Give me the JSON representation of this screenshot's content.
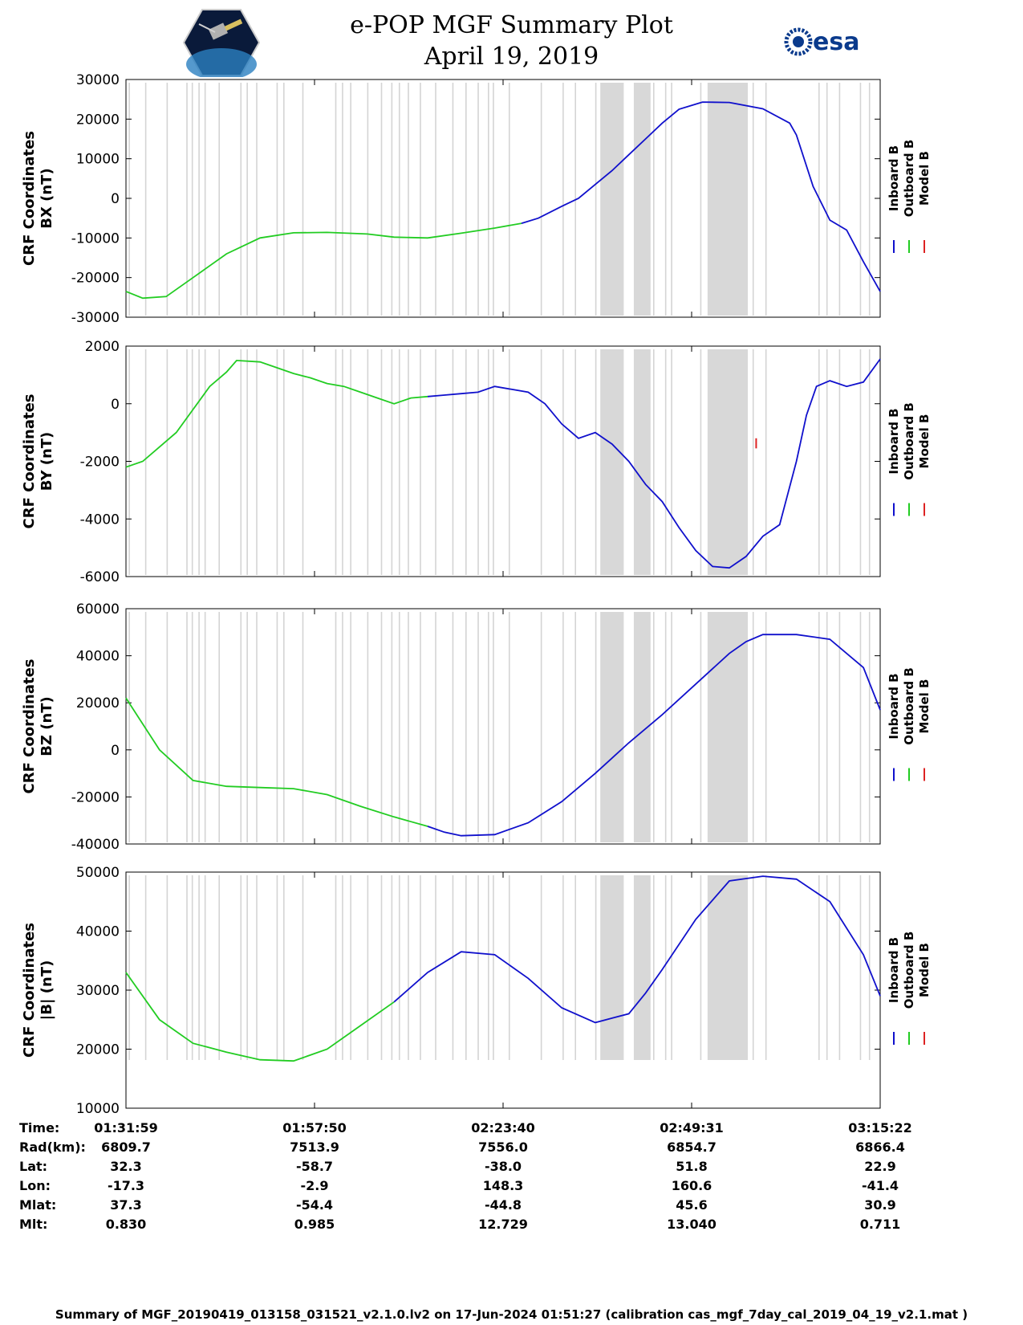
{
  "header": {
    "title": "e-POP MGF Summary Plot",
    "date": "April 19, 2019",
    "left_logo": "cassiope-mission-logo",
    "right_logo": "esa-logo",
    "right_logo_text": "esa"
  },
  "legend": {
    "labels": [
      "Inboard B",
      "Outboard B",
      "Model B"
    ],
    "colors": [
      "#1010cc",
      "#22cc22",
      "#dd2222"
    ]
  },
  "chart_data": [
    {
      "type": "line",
      "ylabel_line1": "CRF Coordinates",
      "ylabel_line2": "BX (nT)",
      "ylim": [
        -30000,
        30000
      ],
      "yticks": [
        -30000,
        -20000,
        -10000,
        0,
        10000,
        20000,
        30000
      ],
      "yticklabels": [
        "-30000",
        "-20000",
        "-10000",
        "0",
        "10000",
        "20000",
        "30000"
      ],
      "x_minutes": [
        0,
        5,
        12,
        20,
        30,
        40,
        50,
        60,
        72,
        80,
        85,
        90,
        100,
        110,
        118,
        123,
        130,
        135,
        140,
        145,
        150,
        155,
        160,
        165,
        172,
        180,
        190,
        198,
        200,
        205,
        210,
        215,
        220,
        225
      ],
      "green": [
        -23500,
        -25200,
        -24800,
        -20000,
        -14000,
        -10000,
        -8700,
        -8600,
        -9000,
        -9800,
        -9900,
        -10000,
        -8800,
        -7500,
        -6300,
        null,
        null,
        null,
        null,
        null,
        null,
        null,
        null,
        null,
        null,
        null,
        null,
        null,
        null,
        null,
        null,
        null,
        null,
        null
      ],
      "blue": [
        null,
        null,
        null,
        null,
        null,
        null,
        null,
        null,
        null,
        null,
        null,
        null,
        null,
        null,
        -6300,
        -5000,
        -2000,
        0,
        3500,
        7000,
        11000,
        15000,
        19000,
        22500,
        24300,
        24200,
        22600,
        19000,
        16000,
        3000,
        -5500,
        -8000,
        -16000,
        -23500
      ]
    },
    {
      "type": "line",
      "ylabel_line1": "CRF Coordinates",
      "ylabel_line2": "BY (nT)",
      "ylim": [
        -6000,
        2000
      ],
      "yticks": [
        -6000,
        -4000,
        -2000,
        0,
        2000
      ],
      "yticklabels": [
        "-6000",
        "-4000",
        "-2000",
        "0",
        "2000"
      ],
      "x_minutes": [
        0,
        5,
        10,
        15,
        20,
        25,
        30,
        33,
        40,
        45,
        50,
        55,
        60,
        65,
        70,
        75,
        80,
        85,
        90,
        95,
        100,
        105,
        110,
        115,
        120,
        125,
        130,
        135,
        140,
        145,
        150,
        155,
        160,
        165,
        170,
        175,
        180,
        185,
        190,
        195,
        200,
        203,
        206,
        210,
        215,
        220,
        225
      ],
      "green": [
        -2200,
        -2000,
        -1500,
        -1000,
        -200,
        600,
        1100,
        1500,
        1450,
        1250,
        1050,
        900,
        700,
        600,
        400,
        200,
        0,
        200,
        250,
        null,
        null,
        null,
        null,
        null,
        null,
        null,
        null,
        null,
        null,
        null,
        null,
        null,
        null,
        null,
        null,
        null,
        null,
        null,
        null,
        null,
        null,
        null,
        null,
        null,
        null,
        null,
        null
      ],
      "blue": [
        null,
        null,
        null,
        null,
        null,
        null,
        null,
        null,
        null,
        null,
        null,
        null,
        null,
        null,
        null,
        null,
        null,
        null,
        250,
        300,
        350,
        400,
        600,
        500,
        400,
        0,
        -700,
        -1200,
        -1000,
        -1400,
        -2000,
        -2800,
        -3400,
        -4300,
        -5100,
        -5650,
        -5700,
        -5300,
        -4600,
        -4200,
        -2000,
        -400,
        600,
        800,
        600,
        750,
        1550
      ],
      "red_spike_minutes": 188,
      "red_spike_value": -1200
    },
    {
      "type": "line",
      "ylabel_line1": "CRF Coordinates",
      "ylabel_line2": "BZ (nT)",
      "ylim": [
        -40000,
        60000
      ],
      "yticks": [
        -40000,
        -20000,
        0,
        20000,
        40000,
        60000
      ],
      "yticklabels": [
        "-40000",
        "-20000",
        "0",
        "20000",
        "40000",
        "60000"
      ],
      "x_minutes": [
        0,
        10,
        20,
        30,
        40,
        50,
        60,
        70,
        80,
        90,
        95,
        100,
        110,
        120,
        130,
        140,
        150,
        160,
        170,
        180,
        185,
        190,
        200,
        210,
        220,
        225
      ],
      "green": [
        22000,
        0,
        -13000,
        -15500,
        -16000,
        -16500,
        -19000,
        -24000,
        -28500,
        -32500,
        null,
        null,
        null,
        null,
        null,
        null,
        null,
        null,
        null,
        null,
        null,
        null,
        null,
        null,
        null,
        null
      ],
      "blue": [
        null,
        null,
        null,
        null,
        null,
        null,
        null,
        null,
        null,
        -32500,
        -35000,
        -36500,
        -36000,
        -31000,
        -22000,
        -10000,
        3000,
        15000,
        28000,
        41000,
        46000,
        49000,
        49000,
        47000,
        35000,
        17000
      ]
    },
    {
      "type": "line",
      "ylabel_line1": "CRF Coordinates",
      "ylabel_line2": "|B| (nT)",
      "ylim": [
        10000,
        50000
      ],
      "yticks": [
        10000,
        20000,
        30000,
        40000,
        50000
      ],
      "yticklabels": [
        "10000",
        "20000",
        "30000",
        "40000",
        "50000"
      ],
      "x_minutes": [
        0,
        10,
        20,
        30,
        40,
        50,
        60,
        70,
        80,
        90,
        100,
        110,
        120,
        130,
        140,
        150,
        155,
        160,
        170,
        180,
        190,
        200,
        210,
        220,
        225
      ],
      "green": [
        33000,
        25000,
        21000,
        19500,
        18200,
        18000,
        20000,
        24000,
        28000,
        null,
        null,
        null,
        null,
        null,
        null,
        null,
        null,
        null,
        null,
        null,
        null,
        null,
        null,
        null,
        null
      ],
      "blue": [
        null,
        null,
        null,
        null,
        null,
        null,
        null,
        null,
        28000,
        33000,
        36500,
        36000,
        32000,
        27000,
        24500,
        26000,
        29500,
        33500,
        42000,
        48500,
        49300,
        48800,
        45000,
        36000,
        29000
      ]
    }
  ],
  "x_axis": {
    "range_minutes": [
      0,
      225
    ],
    "tick_minutes": [
      0,
      56.25,
      112.5,
      168.75,
      225
    ],
    "shaded_segments_minutes": [
      [
        141.5,
        148.5
      ],
      [
        151.5,
        156.5
      ],
      [
        173.5,
        185.5
      ]
    ]
  },
  "info_table": {
    "row_labels": [
      "Time:",
      "Rad(km):",
      "Lat:",
      "Lon:",
      "Mlat:",
      "Mlt:"
    ],
    "columns": [
      [
        "01:31:59",
        "6809.7",
        "32.3",
        "-17.3",
        "37.3",
        "0.830"
      ],
      [
        "01:57:50",
        "7513.9",
        "-58.7",
        "-2.9",
        "-54.4",
        "0.985"
      ],
      [
        "02:23:40",
        "7556.0",
        "-38.0",
        "148.3",
        "-44.8",
        "12.729"
      ],
      [
        "02:49:31",
        "6854.7",
        "51.8",
        "160.6",
        "45.6",
        "13.040"
      ],
      [
        "03:15:22",
        "6866.4",
        "22.9",
        "-41.4",
        "30.9",
        "0.711"
      ]
    ]
  },
  "footer": "Summary of MGF_20190419_013158_031521_v2.1.0.lv2 on 17-Jun-2024 01:51:27 (calibration cas_mgf_7day_cal_2019_04_19_v2.1.mat )"
}
